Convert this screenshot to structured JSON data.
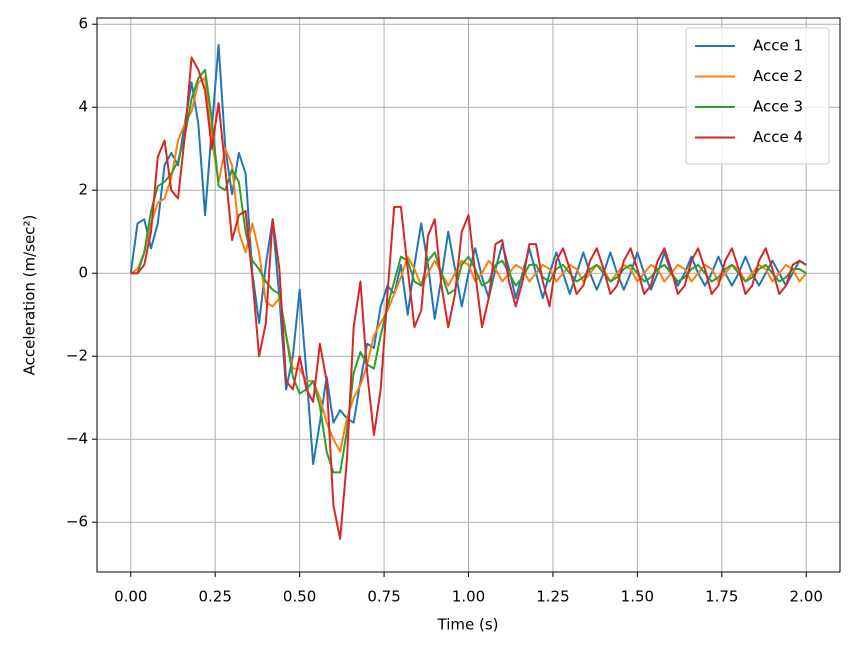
{
  "chart_data": {
    "type": "line",
    "xlabel": "Time (s)",
    "ylabel": "Acceleration (m/sec²)",
    "x": [
      0,
      0.02,
      0.04,
      0.06,
      0.08,
      0.1,
      0.12,
      0.14,
      0.16,
      0.18,
      0.2,
      0.22,
      0.24,
      0.26,
      0.28,
      0.3,
      0.32,
      0.34,
      0.36,
      0.38,
      0.4,
      0.42,
      0.44,
      0.46,
      0.48,
      0.5,
      0.52,
      0.54,
      0.56,
      0.58,
      0.6,
      0.62,
      0.64,
      0.66,
      0.68,
      0.7,
      0.72,
      0.74,
      0.76,
      0.78,
      0.8,
      0.82,
      0.84,
      0.86,
      0.88,
      0.9,
      0.92,
      0.94,
      0.96,
      0.98,
      1,
      1.02,
      1.04,
      1.06,
      1.08,
      1.1,
      1.12,
      1.14,
      1.16,
      1.18,
      1.2,
      1.22,
      1.24,
      1.26,
      1.28,
      1.3,
      1.32,
      1.34,
      1.36,
      1.38,
      1.4,
      1.42,
      1.44,
      1.46,
      1.48,
      1.5,
      1.52,
      1.54,
      1.56,
      1.58,
      1.6,
      1.62,
      1.64,
      1.66,
      1.68,
      1.7,
      1.72,
      1.74,
      1.76,
      1.78,
      1.8,
      1.82,
      1.84,
      1.86,
      1.88,
      1.9,
      1.92,
      1.94,
      1.96,
      1.98,
      2
    ],
    "series": [
      {
        "name": "Acce 1",
        "color": "#1f77b4",
        "values": [
          0,
          1.2,
          1.3,
          0.6,
          1.2,
          2.6,
          2.9,
          2.6,
          3.6,
          4.6,
          3.6,
          1.4,
          3.5,
          5.5,
          3.0,
          1.9,
          2.9,
          2.4,
          0.0,
          -1.2,
          0.2,
          1.3,
          -0.6,
          -2.8,
          -2.0,
          -0.4,
          -2.4,
          -4.6,
          -3.6,
          -2.5,
          -3.6,
          -3.3,
          -3.5,
          -3.6,
          -2.6,
          -1.7,
          -1.8,
          -0.8,
          -0.3,
          -0.5,
          0.2,
          -1.0,
          0.2,
          1.2,
          0.2,
          -1.1,
          -0.1,
          1.0,
          0.1,
          -0.8,
          0.0,
          0.6,
          -0.1,
          -0.6,
          0.1,
          0.7,
          0.1,
          -0.6,
          0.0,
          0.6,
          0.0,
          -0.6,
          0.0,
          0.5,
          0.0,
          -0.5,
          0.0,
          0.5,
          0.0,
          -0.4,
          0.0,
          0.5,
          0.0,
          -0.4,
          0.0,
          0.5,
          0.0,
          -0.4,
          0.0,
          0.5,
          0.0,
          -0.3,
          0.0,
          0.4,
          0.0,
          -0.3,
          0.0,
          0.4,
          0.0,
          -0.3,
          0.0,
          0.4,
          0.0,
          -0.3,
          0.0,
          0.3,
          0.0,
          -0.3,
          0.0,
          0.3,
          0.2
        ]
      },
      {
        "name": "Acce 2",
        "color": "#ff7f0e",
        "values": [
          0,
          0.1,
          0.5,
          1.2,
          1.7,
          1.8,
          2.3,
          3.2,
          3.6,
          3.9,
          4.6,
          4.7,
          3.2,
          2.2,
          3.0,
          2.6,
          1.0,
          0.5,
          1.2,
          0.5,
          -0.7,
          -0.8,
          -0.6,
          -1.5,
          -2.3,
          -2.3,
          -2.6,
          -2.6,
          -3.0,
          -3.6,
          -4.0,
          -4.3,
          -3.5,
          -3.0,
          -2.7,
          -2.2,
          -1.5,
          -1.2,
          -0.9,
          -0.5,
          -0.1,
          0.4,
          0.1,
          -0.3,
          0.0,
          0.3,
          0.0,
          -0.3,
          0.0,
          0.3,
          0.2,
          -0.2,
          0.0,
          0.3,
          0.1,
          -0.2,
          0.0,
          0.2,
          0.1,
          -0.2,
          0.0,
          0.2,
          0.1,
          -0.2,
          0.0,
          0.2,
          0.1,
          -0.2,
          0.0,
          0.2,
          0.1,
          -0.2,
          0.0,
          0.2,
          0.1,
          -0.2,
          0.0,
          0.2,
          0.1,
          -0.2,
          0.0,
          0.2,
          0.1,
          -0.2,
          0.0,
          0.2,
          0.1,
          -0.2,
          0.0,
          0.2,
          0.1,
          -0.2,
          0.0,
          0.2,
          0.1,
          -0.2,
          0.0,
          0.2,
          0.1,
          -0.2,
          0.0
        ]
      },
      {
        "name": "Acce 3",
        "color": "#2ca02c",
        "values": [
          0,
          0.0,
          0.5,
          1.5,
          2.1,
          2.2,
          2.4,
          2.7,
          3.3,
          4.2,
          4.7,
          4.9,
          3.7,
          2.1,
          2.0,
          2.5,
          2.2,
          1.0,
          0.3,
          0.1,
          -0.2,
          -0.4,
          -0.5,
          -1.5,
          -2.5,
          -2.9,
          -2.8,
          -2.6,
          -3.2,
          -4.3,
          -4.8,
          -4.8,
          -3.8,
          -2.4,
          -1.9,
          -2.2,
          -2.3,
          -1.5,
          -0.8,
          -0.2,
          0.4,
          0.3,
          -0.2,
          -0.3,
          0.3,
          0.5,
          0.0,
          -0.5,
          -0.4,
          0.2,
          0.4,
          0.1,
          -0.3,
          -0.2,
          0.2,
          0.3,
          0.0,
          -0.3,
          -0.1,
          0.2,
          0.2,
          -0.1,
          -0.2,
          0.1,
          0.2,
          0.0,
          -0.2,
          -0.1,
          0.1,
          0.2,
          0.0,
          -0.2,
          -0.1,
          0.1,
          0.2,
          0.0,
          -0.2,
          -0.1,
          0.1,
          0.2,
          0.0,
          -0.2,
          -0.1,
          0.1,
          0.2,
          0.0,
          -0.2,
          -0.1,
          0.1,
          0.2,
          0.0,
          -0.2,
          -0.1,
          0.1,
          0.2,
          0.0,
          -0.2,
          -0.1,
          0.1,
          0.1,
          0.0
        ]
      },
      {
        "name": "Acce 4",
        "color": "#d62728",
        "values": [
          0,
          0.0,
          0.2,
          1.0,
          2.8,
          3.2,
          2.0,
          1.8,
          3.3,
          5.2,
          4.9,
          4.4,
          3.0,
          4.1,
          2.5,
          0.8,
          1.4,
          1.5,
          -0.1,
          -2.0,
          -1.2,
          1.3,
          0.1,
          -2.6,
          -2.8,
          -2.0,
          -2.8,
          -3.1,
          -1.7,
          -2.6,
          -5.6,
          -6.4,
          -4.5,
          -1.3,
          -0.2,
          -2.4,
          -3.9,
          -2.8,
          -0.5,
          1.6,
          1.6,
          0.1,
          -1.3,
          -0.9,
          0.9,
          1.3,
          -0.3,
          -1.3,
          -0.5,
          1.0,
          1.4,
          0.0,
          -1.3,
          -0.6,
          0.7,
          0.8,
          -0.2,
          -0.8,
          -0.2,
          0.7,
          0.7,
          -0.2,
          -0.8,
          0.3,
          0.6,
          0.1,
          -0.5,
          -0.3,
          0.3,
          0.6,
          0.1,
          -0.5,
          -0.3,
          0.3,
          0.6,
          0.1,
          -0.5,
          -0.3,
          0.3,
          0.6,
          0.1,
          -0.5,
          -0.3,
          0.3,
          0.6,
          0.1,
          -0.5,
          -0.3,
          0.3,
          0.6,
          0.1,
          -0.5,
          -0.3,
          0.3,
          0.6,
          0.1,
          -0.5,
          -0.3,
          0.2,
          0.3,
          0.2
        ]
      }
    ],
    "xlim": [
      -0.1,
      2.1
    ],
    "ylim": [
      -7.2,
      6.15
    ],
    "xticks": [
      {
        "value": 0,
        "label": "0.00"
      },
      {
        "value": 0.25,
        "label": "0.25"
      },
      {
        "value": 0.5,
        "label": "0.50"
      },
      {
        "value": 0.75,
        "label": "0.75"
      },
      {
        "value": 1,
        "label": "1.00"
      },
      {
        "value": 1.25,
        "label": "1.25"
      },
      {
        "value": 1.5,
        "label": "1.50"
      },
      {
        "value": 1.75,
        "label": "1.75"
      },
      {
        "value": 2,
        "label": "2.00"
      }
    ],
    "yticks": [
      {
        "value": -6,
        "label": "−6"
      },
      {
        "value": -4,
        "label": "−4"
      },
      {
        "value": -2,
        "label": "−2"
      },
      0,
      2,
      4,
      6
    ],
    "grid": true,
    "legend": "upper-right"
  }
}
